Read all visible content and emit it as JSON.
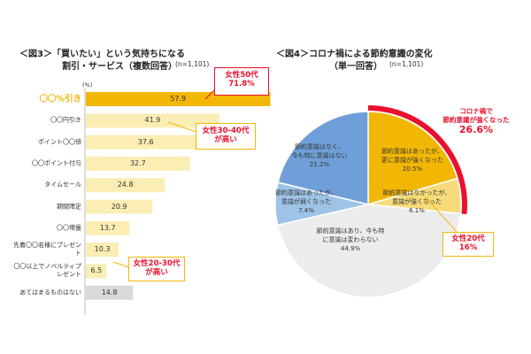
{
  "chart_data": [
    {
      "type": "bar",
      "title": "＜図3＞「買いたい」という気持ちになる割引・サービス（複数回答）",
      "title_line1": "＜図3＞「買いたい」という気持ちになる",
      "title_line2": "割引・サービス（複数回答）",
      "n_label": "(n=1,101)",
      "unit_label": "(%)",
      "categories": [
        "〇〇%引き",
        "〇〇円引き",
        "ポイント〇〇倍",
        "〇〇ポイント付与",
        "タイムセール",
        "期間限定",
        "〇〇増量",
        "先着〇〇名様にプレゼント",
        "〇〇以上でノベルティプレゼント",
        "あてはまるものはない"
      ],
      "values": [
        57.9,
        41.9,
        37.6,
        32.7,
        24.8,
        20.9,
        13.7,
        10.3,
        6.5,
        14.8
      ],
      "value_labels": [
        "57.9",
        "41.9",
        "37.6",
        "32.7",
        "24.8",
        "20.9",
        "13.7",
        "10.3",
        "6.5",
        "14.8"
      ],
      "bar_colors": [
        "#f2b705",
        "#fbeeb4",
        "#fbeeb4",
        "#fbeeb4",
        "#fbeeb4",
        "#fbeeb4",
        "#fbeeb4",
        "#fbeeb4",
        "#fbeeb4",
        "#d9d9d9"
      ],
      "highlight_label_color": "#f2b705",
      "xlim": [
        0,
        70
      ],
      "orientation": "horizontal",
      "annotations": [
        {
          "text": "女性50代 71.8%",
          "line1": "女性50代",
          "line2": "71.8%",
          "target": "〇〇%引き"
        },
        {
          "text": "女性30-40代が高い",
          "line1": "女性30-40代",
          "line2": "が高い",
          "target": "〇〇円引き"
        },
        {
          "text": "女性20-30代が高い",
          "line1": "女性20-30代",
          "line2": "が高い",
          "target": "先着〇〇名様にプレゼント"
        }
      ]
    },
    {
      "type": "pie",
      "title": "＜図4＞コロナ禍による節約意識の変化（単一回答）",
      "title_line1": "＜図4＞コロナ禍による節約意識の変化",
      "title_line2": "（単一回答）",
      "n_label": "(n=1,101)",
      "slices": [
        {
          "label": "節約意識はあったが、更に意識が強くなった",
          "line1": "節約意識はあったが、",
          "line2": "更に意識が強くなった",
          "value": 20.5,
          "value_label": "20.5%",
          "color": "#f2b705"
        },
        {
          "label": "節約意識はなかったが、意識が強くなった",
          "line1": "節約意識はなかったが、",
          "line2": "意識が強くなった",
          "value": 6.1,
          "value_label": "6.1%",
          "color": "#f7da7a"
        },
        {
          "label": "節約意識はあり、今も特に意識は変わらない",
          "line1": "節約意識はあり、今も特",
          "line2": "に意識は変わらない",
          "value": 44.9,
          "value_label": "44.9%",
          "color": "#ececec"
        },
        {
          "label": "節約意識はあったが、意識が弱くなった",
          "line1": "節約意識はあったが、",
          "line2": "意識が弱くなった",
          "value": 7.4,
          "value_label": "7.4%",
          "color": "#9dc3e6"
        },
        {
          "label": "節約意識はなく、今も特に意識はない",
          "line1": "節約意識はなく、",
          "line2": "今も特に意識はない",
          "value": 21.2,
          "value_label": "21.2%",
          "color": "#6f9fd8"
        }
      ],
      "highlight_arc_color": "#e8112d",
      "annotations": [
        {
          "text": "コロナ禍で節約意識が強くなった 26.6%",
          "line1": "コロナ禍で",
          "line2": "節約意識が強くなった",
          "line3": "26.6%"
        },
        {
          "text": "女性20代 16%",
          "line1": "女性20代",
          "line2": "16%"
        }
      ]
    }
  ]
}
